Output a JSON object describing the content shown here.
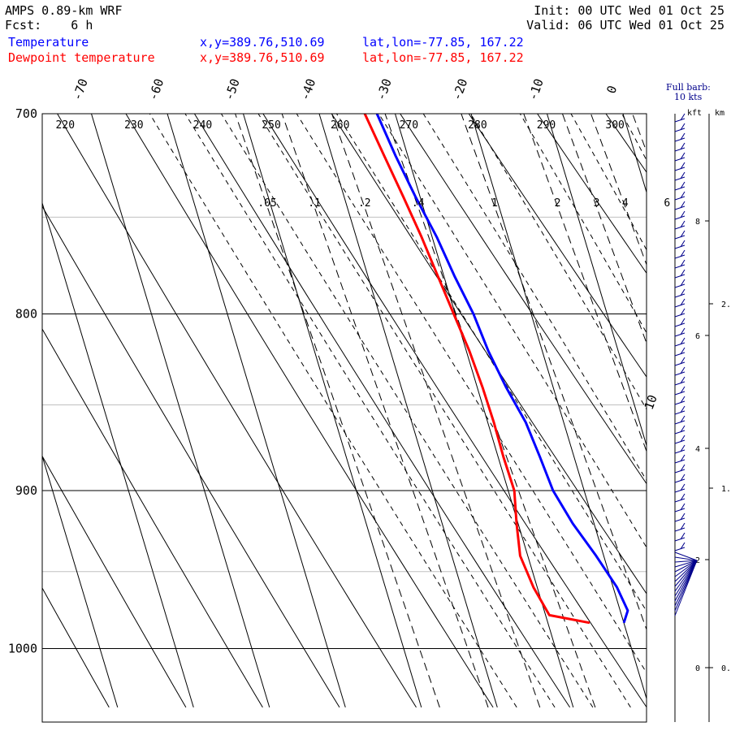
{
  "header": {
    "model": "AMPS 0.89-km WRF",
    "fcst": "Fcst:    6 h",
    "init": "Init: 00 UTC Wed 01 Oct 25",
    "valid": "Valid: 06 UTC Wed 01 Oct 25",
    "temp_label": "Temperature",
    "dew_label": "Dewpoint temperature",
    "temp_xy": "x,y=389.76,510.69",
    "temp_latlon": "lat,lon=-77.85, 167.22",
    "dew_xy": "x,y=389.76,510.69",
    "dew_latlon": "lat,lon=-77.85, 167.22",
    "barb_label": "Full barb:",
    "barb_value": "10 kts",
    "kft_label": "kft",
    "km_label": "km"
  },
  "colors": {
    "temperature": "#0000ff",
    "dewpoint": "#ff0000",
    "temp_text": "#0000ff",
    "dew_text": "#ff0000",
    "barb": "#00008b"
  },
  "chart_data": {
    "type": "line",
    "subtype": "skew-T log-P",
    "ylabel_units": "hPa",
    "ylim": [
      1040,
      700
    ],
    "isobars": [
      700,
      800,
      900,
      1000
    ],
    "isobar_labels": [
      "700",
      "800",
      "900",
      "1000"
    ],
    "isotherm_labels": [
      "-70",
      "-60",
      "-50",
      "-40",
      "-30",
      "-20",
      "-10",
      "0",
      "10"
    ],
    "theta_labels": [
      "220",
      "230",
      "240",
      "250",
      "260",
      "270",
      "280",
      "290",
      "300"
    ],
    "mixing_ratio_labels": [
      ".05",
      ".1",
      ".2",
      ".4",
      "1",
      "2",
      "3",
      "4",
      "6"
    ],
    "kft_ticks": [
      "0",
      "2",
      "4",
      "6",
      "8"
    ],
    "km_ticks": [
      "0.",
      "1.",
      "2."
    ],
    "series": [
      {
        "name": "Temperature",
        "pressure": [
          983,
          975,
          960,
          940,
          920,
          900,
          880,
          860,
          840,
          820,
          800,
          780,
          760,
          740,
          720,
          700
        ],
        "temp": [
          -20,
          -19,
          -19.5,
          -21,
          -22.8,
          -24.1,
          -24.5,
          -25,
          -26.2,
          -27.1,
          -27.6,
          -28.6,
          -29.4,
          -30.6,
          -31.6,
          -32.4
        ]
      },
      {
        "name": "Dewpoint temperature",
        "pressure": [
          983,
          978,
          960,
          940,
          920,
          900,
          880,
          860,
          840,
          820,
          800,
          780,
          760,
          740,
          720,
          700
        ],
        "temp": [
          -24.5,
          -29.5,
          -30.5,
          -31,
          -30.2,
          -29.2,
          -29.3,
          -29.2,
          -29.3,
          -29.6,
          -30.2,
          -30.8,
          -31.4,
          -32.2,
          -33.1,
          -34
        ]
      }
    ]
  }
}
